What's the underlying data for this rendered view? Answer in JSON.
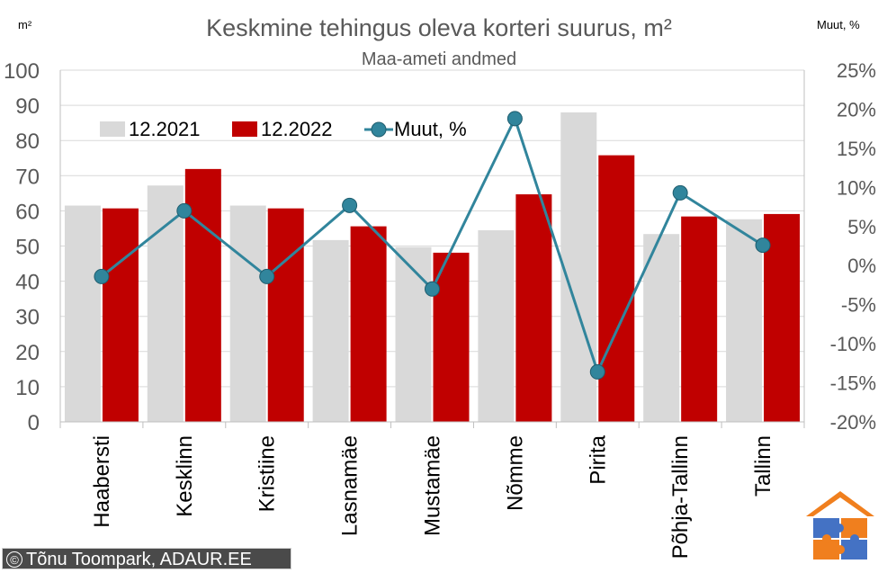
{
  "chart_data": {
    "type": "bar+line",
    "title": "Keskmine tehingus oleva korteri suurus, m²",
    "subtitle": "Maa-ameti andmed",
    "left_axis_unit": "m²",
    "right_axis_unit": "Muut, %",
    "categories": [
      "Haabersti",
      "Kesklinn",
      "Kristiine",
      "Lasnamäe",
      "Mustamäe",
      "Nõmme",
      "Pirita",
      "Põhja-Tallinn",
      "Tallinn"
    ],
    "series": [
      {
        "name": "12.2021",
        "type": "bar",
        "axis": "left",
        "color": "#d9d9d9",
        "values": [
          61.5,
          67.2,
          61.5,
          51.7,
          49.7,
          54.5,
          88.0,
          53.4,
          57.6
        ]
      },
      {
        "name": "12.2022",
        "type": "bar",
        "axis": "left",
        "color": "#c00000",
        "values": [
          60.7,
          71.9,
          60.7,
          55.6,
          48.1,
          64.7,
          75.8,
          58.4,
          59.1
        ]
      },
      {
        "name": "Muut, %",
        "type": "line",
        "axis": "right",
        "color": "#31859c",
        "values": [
          -1.4,
          7.0,
          -1.4,
          7.7,
          -3.0,
          18.8,
          -13.6,
          9.3,
          2.6
        ]
      }
    ],
    "left_axis": {
      "min": 0,
      "max": 100,
      "step": 10,
      "ticks": [
        "0",
        "10",
        "20",
        "30",
        "40",
        "50",
        "60",
        "70",
        "80",
        "90",
        "100"
      ]
    },
    "right_axis": {
      "min": -20,
      "max": 25,
      "step": 5,
      "ticks": [
        "-20%",
        "-15%",
        "-10%",
        "-5%",
        "0%",
        "5%",
        "10%",
        "15%",
        "20%",
        "25%"
      ]
    },
    "grid": true,
    "legend_position": "top-left"
  },
  "credit": {
    "symbol": "©",
    "text": "Tõnu Toompark, ADAUR.EE"
  },
  "logo": {
    "name": "adaur-house-puzzle-logo"
  }
}
